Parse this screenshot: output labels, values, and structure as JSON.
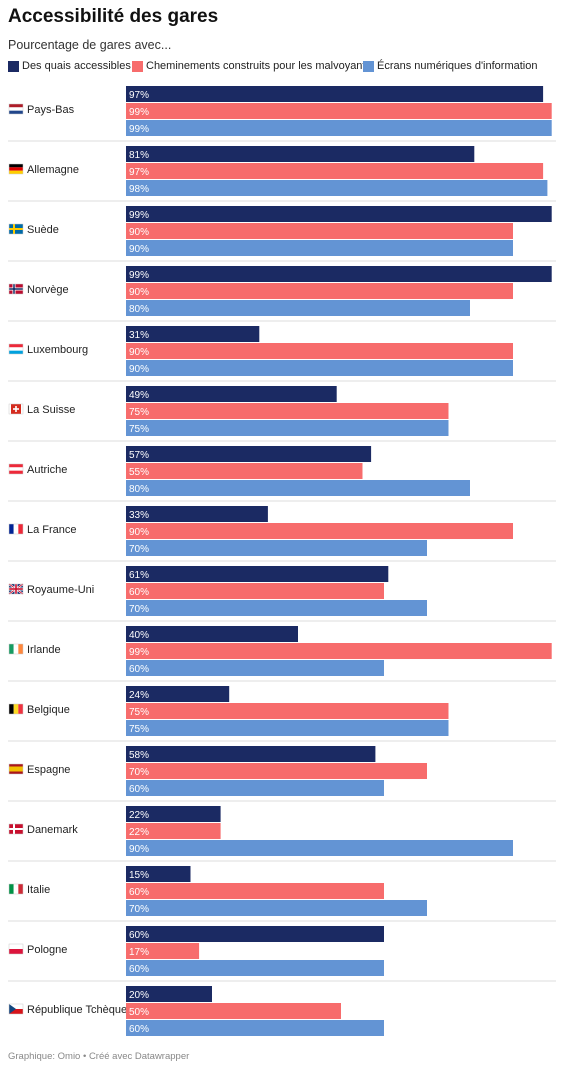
{
  "title": "Accessibilité des gares",
  "subtitle": "Pourcentage de gares avec...",
  "footer": "Graphique: Omio • Créé avec Datawrapper",
  "colors": {
    "series": [
      "#1b2a63",
      "#f76c6c",
      "#6394d4"
    ],
    "separator": "#dddddd"
  },
  "chart_data": {
    "type": "bar",
    "orientation": "horizontal",
    "title": "Accessibilité des gares",
    "subtitle": "Pourcentage de gares avec...",
    "xlim": [
      0,
      100
    ],
    "value_unit": "%",
    "legend_position": "top",
    "categories": [
      "Pays-Bas",
      "Allemagne",
      "Suède",
      "Norvège",
      "Luxembourg",
      "La Suisse",
      "Autriche",
      "La France",
      "Royaume-Uni",
      "Irlande",
      "Belgique",
      "Espagne",
      "Danemark",
      "Italie",
      "Pologne",
      "République Tchèque"
    ],
    "flags": [
      "nl",
      "de",
      "se",
      "no",
      "lu",
      "ch",
      "at",
      "fr",
      "gb",
      "ie",
      "be",
      "es",
      "dk",
      "it",
      "pl",
      "cz"
    ],
    "series": [
      {
        "name": "Des quais accessibles",
        "values": [
          97,
          81,
          99,
          99,
          31,
          49,
          57,
          33,
          61,
          40,
          24,
          58,
          22,
          15,
          60,
          20
        ]
      },
      {
        "name": "Cheminements construits pour les malvoyants",
        "values": [
          99,
          97,
          90,
          90,
          90,
          75,
          55,
          90,
          60,
          99,
          75,
          70,
          22,
          60,
          17,
          50
        ]
      },
      {
        "name": "Écrans numériques d'information",
        "values": [
          99,
          98,
          90,
          80,
          90,
          75,
          80,
          70,
          70,
          60,
          75,
          60,
          90,
          70,
          60,
          60
        ]
      }
    ]
  }
}
